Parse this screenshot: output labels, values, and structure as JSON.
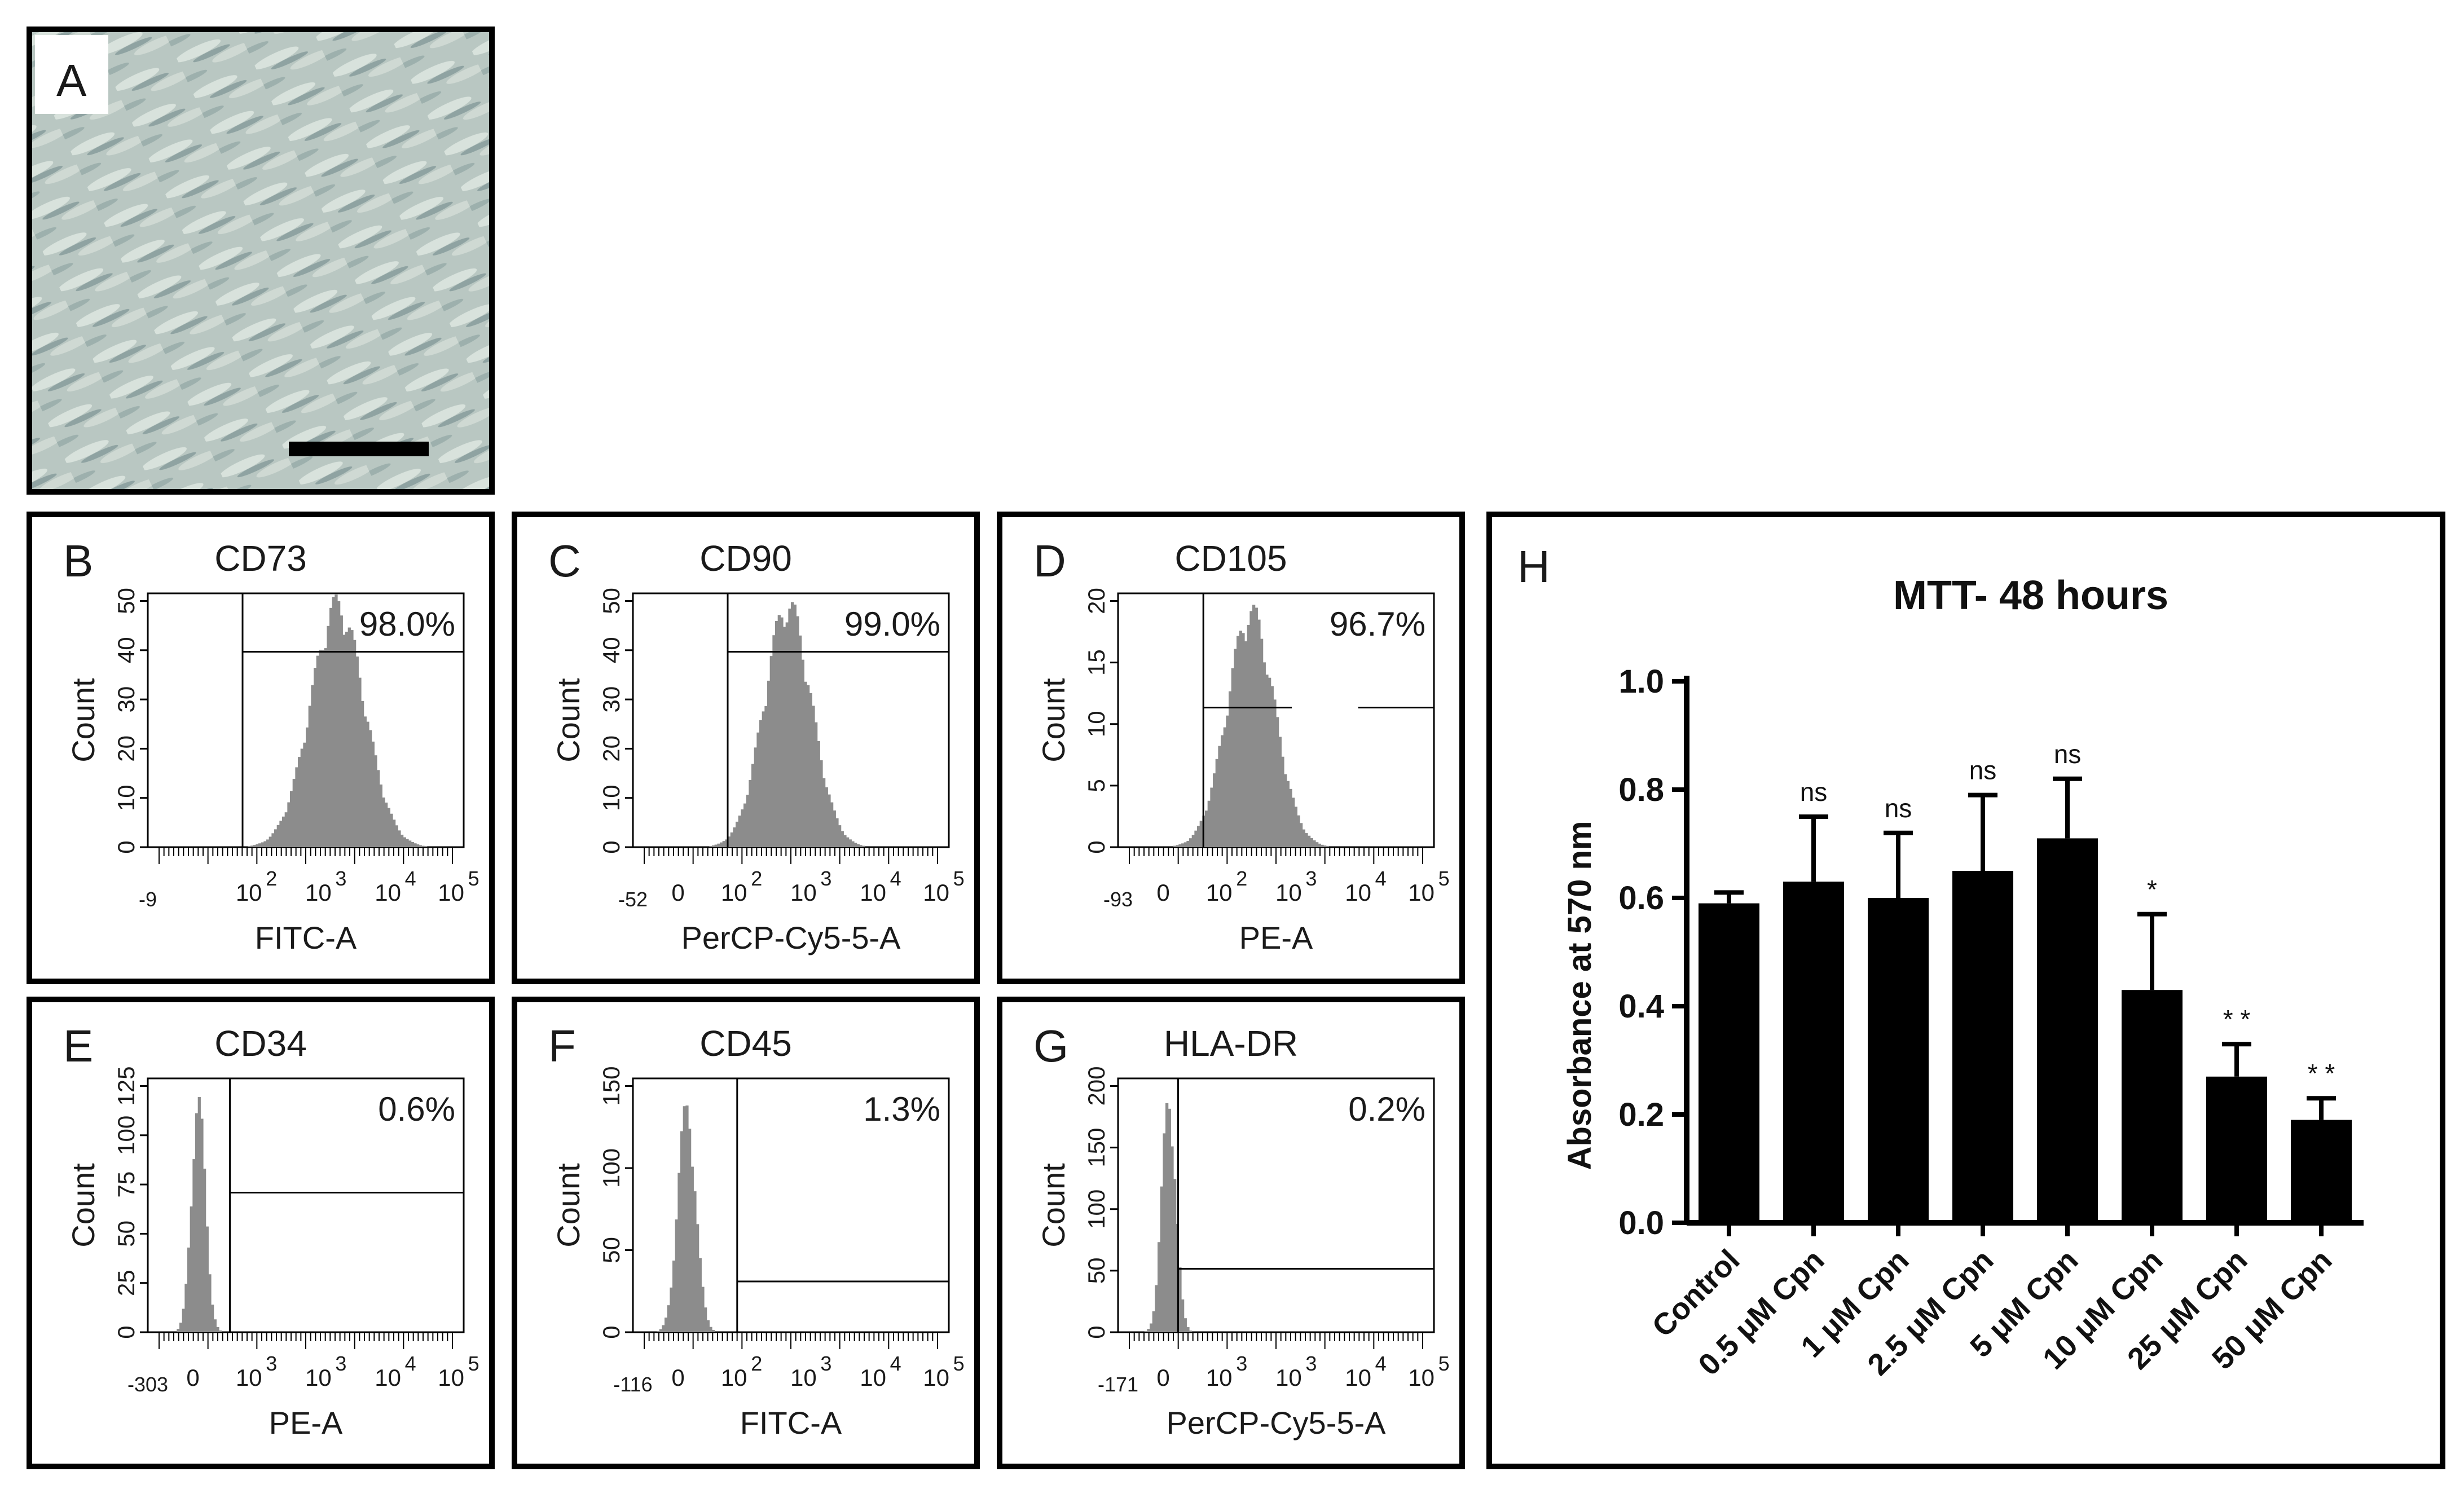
{
  "panel_a": {
    "label": "A",
    "description_icon": "microscopy-image"
  },
  "flow_panels": [
    {
      "label": "B",
      "marker": "CD73",
      "percent": "98.0%",
      "xlabel": "FITC-A",
      "ylabel": "Count",
      "xmin_label": "-9",
      "yticks": [
        "0",
        "10",
        "20",
        "30",
        "40",
        "50"
      ],
      "xticks": [
        "10",
        "10",
        "10",
        "10"
      ],
      "xexp": [
        "2",
        "3",
        "4",
        "5"
      ],
      "zero": false,
      "bins_mu": 0.6,
      "bins_sigma": 0.085,
      "peak_frac": 1.0,
      "gate_start": 0.3,
      "hline_frac": 0.77,
      "hline_break": false
    },
    {
      "label": "C",
      "marker": "CD90",
      "percent": "99.0%",
      "xlabel": "PerCP-Cy5-5-A",
      "ylabel": "Count",
      "xmin_label": "-52",
      "yticks": [
        "0",
        "10",
        "20",
        "30",
        "40",
        "50"
      ],
      "xticks": [
        "10",
        "10",
        "10",
        "10"
      ],
      "xexp": [
        "2",
        "3",
        "4",
        "5"
      ],
      "zero": true,
      "bins_mu": 0.49,
      "bins_sigma": 0.075,
      "peak_frac": 1.0,
      "gate_start": 0.3,
      "hline_frac": 0.77,
      "hline_break": false
    },
    {
      "label": "D",
      "marker": "CD105",
      "percent": "96.7%",
      "xlabel": "PE-A",
      "ylabel": "Count",
      "xmin_label": "-93",
      "yticks": [
        "0",
        "5",
        "10",
        "15",
        "20"
      ],
      "xticks": [
        "10",
        "10",
        "10",
        "10"
      ],
      "xexp": [
        "2",
        "3",
        "4",
        "5"
      ],
      "zero": true,
      "bins_mu": 0.42,
      "bins_sigma": 0.075,
      "peak_frac": 0.97,
      "gate_start": 0.27,
      "hline_frac": 0.55,
      "hline_break": true
    },
    {
      "label": "E",
      "marker": "CD34",
      "percent": "0.6%",
      "xlabel": "PE-A",
      "ylabel": "Count",
      "xmin_label": "-303",
      "yticks": [
        "0",
        "25",
        "50",
        "75",
        "100",
        "125"
      ],
      "xticks": [
        "10",
        "10",
        "10",
        "10"
      ],
      "xexp": [
        "3",
        "3",
        "4",
        "5"
      ],
      "zero": true,
      "bins_mu": 0.16,
      "bins_sigma": 0.022,
      "peak_frac": 0.95,
      "gate_start": 0.26,
      "hline_frac": 0.55,
      "hline_break": false
    },
    {
      "label": "F",
      "marker": "CD45",
      "percent": "1.3%",
      "xlabel": "FITC-A",
      "ylabel": "Count",
      "xmin_label": "-116",
      "yticks": [
        "0",
        "50",
        "100",
        "150"
      ],
      "xticks": [
        "10",
        "10",
        "10",
        "10"
      ],
      "xexp": [
        "2",
        "3",
        "4",
        "5"
      ],
      "zero": true,
      "bins_mu": 0.17,
      "bins_sigma": 0.028,
      "peak_frac": 0.93,
      "gate_start": 0.33,
      "hline_frac": 0.2,
      "hline_break": false
    },
    {
      "label": "G",
      "marker": "HLA-DR",
      "percent": "0.2%",
      "xlabel": "PerCP-Cy5-5-A",
      "ylabel": "Count",
      "xmin_label": "-171",
      "yticks": [
        "0",
        "50",
        "100",
        "150",
        "200"
      ],
      "xticks": [
        "10",
        "10",
        "10",
        "10"
      ],
      "xexp": [
        "3",
        "3",
        "4",
        "5"
      ],
      "zero": true,
      "bins_mu": 0.16,
      "bins_sigma": 0.022,
      "peak_frac": 0.97,
      "gate_start": 0.19,
      "hline_frac": 0.25,
      "hline_break": false
    }
  ],
  "chart_data": {
    "type": "bar",
    "label": "H",
    "title": "MTT- 48 hours",
    "xlabel": "",
    "ylabel": "Absorbance at 570 nm",
    "ylim": [
      0.0,
      1.0
    ],
    "yticks": [
      "0.0",
      "0.2",
      "0.4",
      "0.6",
      "0.8",
      "1.0"
    ],
    "categories": [
      "Control",
      "0.5 μM Cpn",
      "1 μM Cpn",
      "2.5 μM Cpn",
      "5 μM Cpn",
      "10 μM Cpn",
      "25 μM Cpn",
      "50 μM Cpn"
    ],
    "values": [
      0.59,
      0.63,
      0.6,
      0.65,
      0.71,
      0.43,
      0.27,
      0.19
    ],
    "errors": [
      0.02,
      0.12,
      0.12,
      0.14,
      0.11,
      0.14,
      0.06,
      0.04
    ],
    "significance": [
      "",
      "ns",
      "ns",
      "ns",
      "ns",
      "*",
      "* *",
      "* *"
    ],
    "bar_color": "#000000"
  }
}
